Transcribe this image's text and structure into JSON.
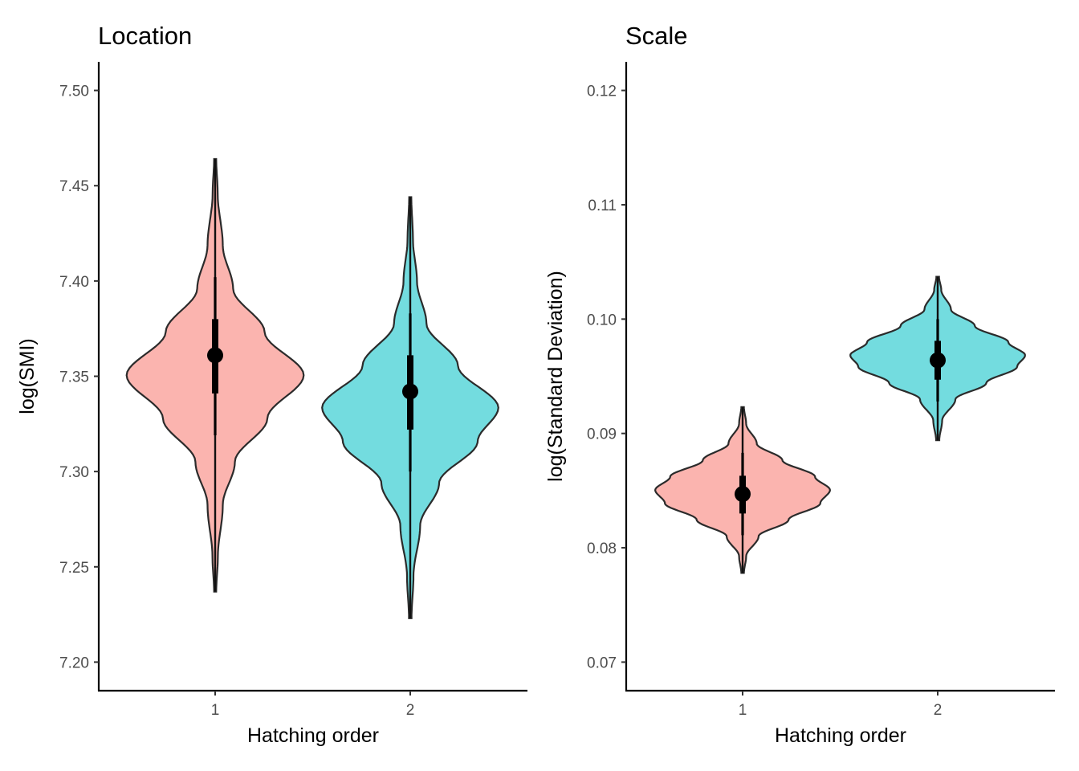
{
  "chart_data": [
    {
      "type": "violin",
      "title": "Location",
      "xlabel": "Hatching order",
      "ylabel": "log(SMI)",
      "categories": [
        "1",
        "2"
      ],
      "ylim": [
        7.185,
        7.515
      ],
      "yticks": [
        "7.20",
        "7.25",
        "7.30",
        "7.35",
        "7.40",
        "7.45",
        "7.50"
      ],
      "grid": false,
      "legend": "none",
      "series": [
        {
          "category": "1",
          "fill": "#F8766D",
          "median": 7.361,
          "inner_interval": [
            7.341,
            7.38
          ],
          "outer_interval": [
            7.319,
            7.402
          ],
          "range": [
            7.237,
            7.464
          ]
        },
        {
          "category": "2",
          "fill": "#00BFC4",
          "median": 7.342,
          "inner_interval": [
            7.322,
            7.361
          ],
          "outer_interval": [
            7.3,
            7.383
          ],
          "range": [
            7.223,
            7.444
          ]
        }
      ]
    },
    {
      "type": "violin",
      "title": "Scale",
      "xlabel": "Hatching order",
      "ylabel": "log(Standard Deviation)",
      "categories": [
        "1",
        "2"
      ],
      "ylim": [
        0.0675,
        0.1225
      ],
      "yticks": [
        "0.07",
        "0.08",
        "0.09",
        "0.10",
        "0.11",
        "0.12"
      ],
      "grid": false,
      "legend": "none",
      "series": [
        {
          "category": "1",
          "fill": "#F8766D",
          "median": 0.0847,
          "inner_interval": [
            0.083,
            0.0863
          ],
          "outer_interval": [
            0.0811,
            0.0883
          ],
          "range": [
            0.0778,
            0.0923
          ]
        },
        {
          "category": "2",
          "fill": "#00BFC4",
          "median": 0.0964,
          "inner_interval": [
            0.0947,
            0.0981
          ],
          "outer_interval": [
            0.0928,
            0.1
          ],
          "range": [
            0.0894,
            0.1037
          ]
        }
      ]
    }
  ]
}
